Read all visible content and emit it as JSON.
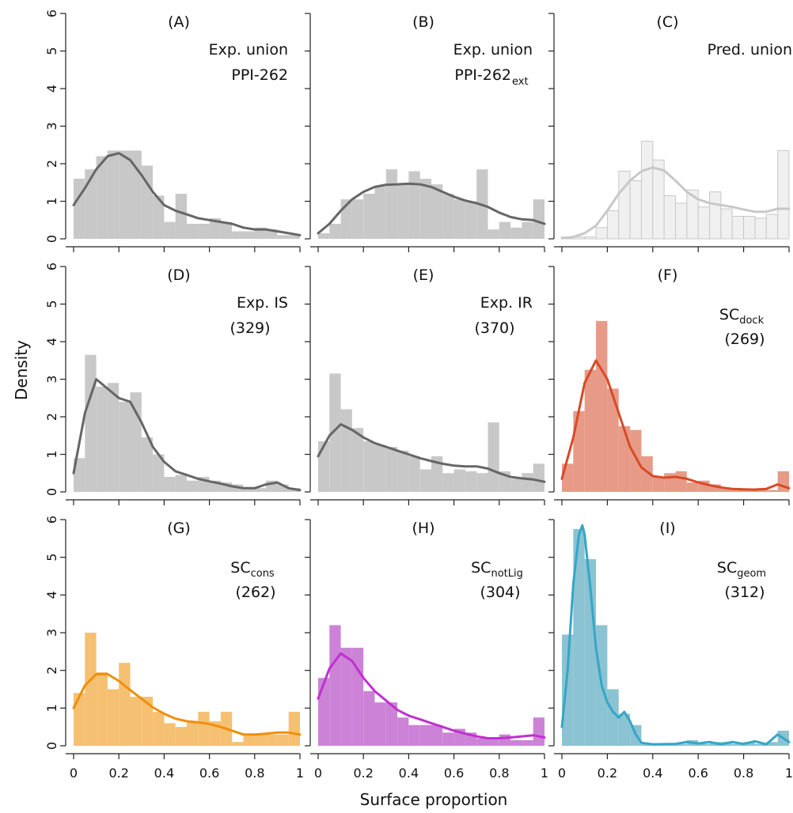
{
  "figure": {
    "ylabel": "Density",
    "xlabel": "Surface proportion",
    "x_ticks": [
      "0",
      "0.2",
      "0.4",
      "0.6",
      "0.8",
      "1"
    ],
    "y_ticks": [
      "0",
      "1",
      "2",
      "3",
      "4",
      "5",
      "6"
    ]
  },
  "chart_data": [
    {
      "type": "bar",
      "panel": "(A)",
      "label_main": "Exp. union",
      "label_sub": "PPI-262",
      "label_sub2": "",
      "hist_color": "#c8c8c8",
      "hist_edge": "none",
      "curve_color": "#666666",
      "xlim": [
        0,
        1
      ],
      "ylim": [
        0,
        6
      ],
      "bin_width": 0.05,
      "values": [
        1.6,
        1.85,
        2.2,
        2.35,
        2.35,
        2.35,
        1.95,
        1.15,
        0.45,
        1.2,
        0.4,
        0.4,
        0.55,
        0.45,
        0.2,
        0.2,
        0.3,
        0.25,
        0.1,
        0.1
      ],
      "density_curve": [
        [
          0,
          0.9
        ],
        [
          0.05,
          1.35
        ],
        [
          0.1,
          1.85
        ],
        [
          0.15,
          2.2
        ],
        [
          0.2,
          2.28
        ],
        [
          0.25,
          2.1
        ],
        [
          0.3,
          1.7
        ],
        [
          0.35,
          1.25
        ],
        [
          0.4,
          0.9
        ],
        [
          0.45,
          0.75
        ],
        [
          0.5,
          0.65
        ],
        [
          0.55,
          0.55
        ],
        [
          0.6,
          0.5
        ],
        [
          0.65,
          0.45
        ],
        [
          0.7,
          0.4
        ],
        [
          0.75,
          0.3
        ],
        [
          0.8,
          0.25
        ],
        [
          0.85,
          0.25
        ],
        [
          0.9,
          0.2
        ],
        [
          0.95,
          0.15
        ],
        [
          1.0,
          0.1
        ]
      ]
    },
    {
      "type": "bar",
      "panel": "(B)",
      "label_main": "Exp. union",
      "label_sub": "PPI-262",
      "label_sub2": "ext",
      "hist_color": "#c8c8c8",
      "hist_edge": "none",
      "curve_color": "#666666",
      "xlim": [
        0,
        1
      ],
      "ylim": [
        0,
        6
      ],
      "bin_width": 0.05,
      "values": [
        0.15,
        0.4,
        1.05,
        1.05,
        1.2,
        1.4,
        1.85,
        1.45,
        1.8,
        1.6,
        1.45,
        1.2,
        1.05,
        1.0,
        1.85,
        0.25,
        0.45,
        0.3,
        0.45,
        1.05
      ],
      "density_curve": [
        [
          0,
          0.15
        ],
        [
          0.05,
          0.4
        ],
        [
          0.1,
          0.75
        ],
        [
          0.15,
          1.05
        ],
        [
          0.2,
          1.25
        ],
        [
          0.25,
          1.38
        ],
        [
          0.3,
          1.44
        ],
        [
          0.35,
          1.45
        ],
        [
          0.4,
          1.47
        ],
        [
          0.45,
          1.45
        ],
        [
          0.5,
          1.38
        ],
        [
          0.55,
          1.25
        ],
        [
          0.6,
          1.12
        ],
        [
          0.65,
          1.02
        ],
        [
          0.7,
          0.95
        ],
        [
          0.75,
          0.85
        ],
        [
          0.8,
          0.7
        ],
        [
          0.85,
          0.58
        ],
        [
          0.9,
          0.52
        ],
        [
          0.95,
          0.5
        ],
        [
          1.0,
          0.4
        ]
      ]
    },
    {
      "type": "bar",
      "panel": "(C)",
      "label_main": "Pred. union",
      "label_sub": "",
      "label_sub2": "",
      "hist_color": "#f0f0f0",
      "hist_edge": "#c8c8c8",
      "curve_color": "#c8c8c8",
      "xlim": [
        0,
        1
      ],
      "ylim": [
        0,
        6
      ],
      "bin_width": 0.05,
      "values": [
        0.05,
        0.05,
        0.05,
        0.3,
        0.75,
        1.8,
        1.55,
        2.6,
        2.1,
        1.15,
        0.95,
        1.3,
        0.85,
        1.25,
        0.8,
        0.6,
        0.6,
        0.55,
        0.65,
        2.35
      ],
      "density_curve": [
        [
          0,
          0.02
        ],
        [
          0.05,
          0.05
        ],
        [
          0.1,
          0.15
        ],
        [
          0.15,
          0.35
        ],
        [
          0.2,
          0.75
        ],
        [
          0.25,
          1.2
        ],
        [
          0.3,
          1.55
        ],
        [
          0.35,
          1.8
        ],
        [
          0.4,
          1.9
        ],
        [
          0.45,
          1.82
        ],
        [
          0.5,
          1.55
        ],
        [
          0.55,
          1.25
        ],
        [
          0.6,
          1.05
        ],
        [
          0.65,
          0.95
        ],
        [
          0.7,
          0.9
        ],
        [
          0.75,
          0.85
        ],
        [
          0.8,
          0.78
        ],
        [
          0.85,
          0.72
        ],
        [
          0.9,
          0.72
        ],
        [
          0.95,
          0.8
        ],
        [
          1.0,
          0.8
        ]
      ]
    },
    {
      "type": "bar",
      "panel": "(D)",
      "label_main": "Exp. IS",
      "label_sub": "(329)",
      "label_sub2": "",
      "hist_color": "#c8c8c8",
      "hist_edge": "none",
      "curve_color": "#666666",
      "xlim": [
        0,
        1
      ],
      "ylim": [
        0,
        6
      ],
      "bin_width": 0.05,
      "values": [
        0.9,
        3.65,
        2.8,
        2.9,
        2.4,
        2.65,
        1.45,
        1.0,
        0.4,
        0.45,
        0.3,
        0.4,
        0.3,
        0.25,
        0.2,
        0.1,
        0.1,
        0.3,
        0.2,
        0.1
      ],
      "density_curve": [
        [
          0,
          0.5
        ],
        [
          0.05,
          2.1
        ],
        [
          0.1,
          3.0
        ],
        [
          0.15,
          2.75
        ],
        [
          0.2,
          2.5
        ],
        [
          0.25,
          2.4
        ],
        [
          0.3,
          1.85
        ],
        [
          0.35,
          1.2
        ],
        [
          0.4,
          0.8
        ],
        [
          0.45,
          0.55
        ],
        [
          0.5,
          0.45
        ],
        [
          0.55,
          0.35
        ],
        [
          0.6,
          0.28
        ],
        [
          0.65,
          0.22
        ],
        [
          0.7,
          0.15
        ],
        [
          0.75,
          0.1
        ],
        [
          0.8,
          0.1
        ],
        [
          0.85,
          0.2
        ],
        [
          0.9,
          0.25
        ],
        [
          0.95,
          0.1
        ],
        [
          1.0,
          0.05
        ]
      ]
    },
    {
      "type": "bar",
      "panel": "(E)",
      "label_main": "Exp. IR",
      "label_sub": "(370)",
      "label_sub2": "",
      "hist_color": "#c8c8c8",
      "hist_edge": "none",
      "curve_color": "#666666",
      "xlim": [
        0,
        1
      ],
      "ylim": [
        0,
        6
      ],
      "bin_width": 0.05,
      "values": [
        1.35,
        3.15,
        2.2,
        1.7,
        1.35,
        1.25,
        1.2,
        1.1,
        0.95,
        0.6,
        0.95,
        0.5,
        0.6,
        0.55,
        0.5,
        1.85,
        0.55,
        0.35,
        0.5,
        0.75
      ],
      "density_curve": [
        [
          0,
          0.95
        ],
        [
          0.05,
          1.5
        ],
        [
          0.1,
          1.8
        ],
        [
          0.15,
          1.65
        ],
        [
          0.2,
          1.45
        ],
        [
          0.25,
          1.3
        ],
        [
          0.3,
          1.2
        ],
        [
          0.35,
          1.1
        ],
        [
          0.4,
          1.0
        ],
        [
          0.45,
          0.9
        ],
        [
          0.5,
          0.82
        ],
        [
          0.55,
          0.75
        ],
        [
          0.6,
          0.7
        ],
        [
          0.65,
          0.68
        ],
        [
          0.7,
          0.68
        ],
        [
          0.75,
          0.62
        ],
        [
          0.8,
          0.5
        ],
        [
          0.85,
          0.4
        ],
        [
          0.9,
          0.36
        ],
        [
          0.95,
          0.33
        ],
        [
          1.0,
          0.27
        ]
      ]
    },
    {
      "type": "bar",
      "panel": "(F)",
      "label_main": "SC",
      "label_sub": "(269)",
      "label_sub2": "dock",
      "hist_color": "#e79b87",
      "hist_edge": "none",
      "curve_color": "#d84a27",
      "xlim": [
        0,
        1
      ],
      "ylim": [
        0,
        6
      ],
      "bin_width": 0.05,
      "values": [
        0.75,
        2.15,
        3.25,
        4.55,
        2.75,
        1.75,
        1.65,
        0.95,
        0.4,
        0.5,
        0.55,
        0.25,
        0.3,
        0.2,
        0.1,
        0.05,
        0.05,
        0.1,
        0.05,
        0.55
      ],
      "density_curve": [
        [
          0,
          0.35
        ],
        [
          0.05,
          1.45
        ],
        [
          0.1,
          2.9
        ],
        [
          0.15,
          3.5
        ],
        [
          0.2,
          3.0
        ],
        [
          0.25,
          2.1
        ],
        [
          0.3,
          1.2
        ],
        [
          0.35,
          0.65
        ],
        [
          0.4,
          0.42
        ],
        [
          0.45,
          0.38
        ],
        [
          0.5,
          0.4
        ],
        [
          0.55,
          0.35
        ],
        [
          0.6,
          0.25
        ],
        [
          0.65,
          0.18
        ],
        [
          0.7,
          0.12
        ],
        [
          0.75,
          0.08
        ],
        [
          0.8,
          0.07
        ],
        [
          0.85,
          0.06
        ],
        [
          0.9,
          0.08
        ],
        [
          0.95,
          0.2
        ],
        [
          1.0,
          0.1
        ]
      ]
    },
    {
      "type": "bar",
      "panel": "(G)",
      "label_main": "SC",
      "label_sub": "(262)",
      "label_sub2": "cons",
      "hist_color": "#f5c071",
      "hist_edge": "none",
      "curve_color": "#ef8f0b",
      "xlim": [
        0,
        1
      ],
      "ylim": [
        0,
        6
      ],
      "bin_width": 0.05,
      "values": [
        1.4,
        3.0,
        1.95,
        1.5,
        2.2,
        1.3,
        1.3,
        0.9,
        0.6,
        0.5,
        0.65,
        0.9,
        0.65,
        0.9,
        0.1,
        0.3,
        0.3,
        0.3,
        0.3,
        0.9
      ],
      "density_curve": [
        [
          0,
          1.0
        ],
        [
          0.05,
          1.6
        ],
        [
          0.1,
          1.9
        ],
        [
          0.15,
          1.9
        ],
        [
          0.2,
          1.72
        ],
        [
          0.25,
          1.48
        ],
        [
          0.3,
          1.25
        ],
        [
          0.35,
          1.02
        ],
        [
          0.4,
          0.85
        ],
        [
          0.45,
          0.72
        ],
        [
          0.5,
          0.65
        ],
        [
          0.55,
          0.62
        ],
        [
          0.6,
          0.58
        ],
        [
          0.65,
          0.5
        ],
        [
          0.7,
          0.4
        ],
        [
          0.75,
          0.3
        ],
        [
          0.8,
          0.3
        ],
        [
          0.85,
          0.32
        ],
        [
          0.9,
          0.35
        ],
        [
          0.95,
          0.35
        ],
        [
          1.0,
          0.3
        ]
      ]
    },
    {
      "type": "bar",
      "panel": "(H)",
      "label_main": "SC",
      "label_sub": "(304)",
      "label_sub2": "notLig",
      "hist_color": "#cc83d7",
      "hist_edge": "none",
      "curve_color": "#c030d0",
      "xlim": [
        0,
        1
      ],
      "ylim": [
        0,
        6
      ],
      "bin_width": 0.05,
      "values": [
        1.8,
        3.2,
        2.6,
        2.6,
        1.45,
        1.15,
        1.15,
        0.75,
        0.55,
        0.55,
        0.55,
        0.35,
        0.45,
        0.35,
        0.2,
        0.2,
        0.3,
        0.15,
        0.15,
        0.75
      ],
      "density_curve": [
        [
          0,
          1.25
        ],
        [
          0.05,
          2.05
        ],
        [
          0.1,
          2.45
        ],
        [
          0.15,
          2.25
        ],
        [
          0.2,
          1.8
        ],
        [
          0.25,
          1.45
        ],
        [
          0.3,
          1.2
        ],
        [
          0.35,
          0.95
        ],
        [
          0.4,
          0.8
        ],
        [
          0.45,
          0.7
        ],
        [
          0.5,
          0.6
        ],
        [
          0.55,
          0.5
        ],
        [
          0.6,
          0.4
        ],
        [
          0.65,
          0.32
        ],
        [
          0.7,
          0.25
        ],
        [
          0.75,
          0.2
        ],
        [
          0.8,
          0.2
        ],
        [
          0.85,
          0.22
        ],
        [
          0.9,
          0.25
        ],
        [
          0.95,
          0.28
        ],
        [
          1.0,
          0.22
        ]
      ]
    },
    {
      "type": "bar",
      "panel": "(I)",
      "label_main": "SC",
      "label_sub": "(312)",
      "label_sub2": "geom",
      "hist_color": "#8bc3d2",
      "hist_edge": "none",
      "curve_color": "#35a6c6",
      "xlim": [
        0,
        1
      ],
      "ylim": [
        0,
        6
      ],
      "bin_width": 0.05,
      "values": [
        2.95,
        5.75,
        4.95,
        3.2,
        1.5,
        0.85,
        0.55,
        0.05,
        0.05,
        0.05,
        0.05,
        0.15,
        0.05,
        0.1,
        0.1,
        0.05,
        0.1,
        0.05,
        0.1,
        0.4
      ],
      "density_curve": [
        [
          0,
          0.5
        ],
        [
          0.025,
          2.0
        ],
        [
          0.05,
          4.3
        ],
        [
          0.075,
          5.6
        ],
        [
          0.09,
          5.85
        ],
        [
          0.1,
          5.6
        ],
        [
          0.125,
          4.2
        ],
        [
          0.15,
          2.6
        ],
        [
          0.175,
          1.6
        ],
        [
          0.2,
          1.15
        ],
        [
          0.225,
          0.9
        ],
        [
          0.25,
          0.75
        ],
        [
          0.275,
          0.9
        ],
        [
          0.3,
          0.65
        ],
        [
          0.325,
          0.3
        ],
        [
          0.35,
          0.08
        ],
        [
          0.4,
          0.04
        ],
        [
          0.5,
          0.05
        ],
        [
          0.55,
          0.1
        ],
        [
          0.6,
          0.06
        ],
        [
          0.65,
          0.1
        ],
        [
          0.7,
          0.04
        ],
        [
          0.75,
          0.1
        ],
        [
          0.8,
          0.05
        ],
        [
          0.85,
          0.12
        ],
        [
          0.9,
          0.04
        ],
        [
          0.95,
          0.3
        ],
        [
          1.0,
          0.1
        ]
      ]
    }
  ]
}
